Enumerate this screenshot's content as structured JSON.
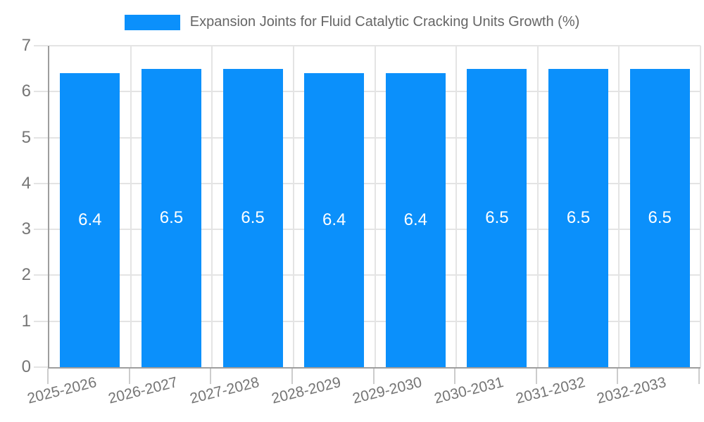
{
  "chart_data": {
    "type": "bar",
    "title": "Expansion Joints for Fluid Catalytic Cracking Units Growth (%)",
    "categories": [
      "2025-2026",
      "2026-2027",
      "2027-2028",
      "2028-2029",
      "2029-2030",
      "2030-2031",
      "2031-2032",
      "2032-2033"
    ],
    "series": [
      {
        "name": "Expansion Joints for Fluid Catalytic Cracking Units Growth (%)",
        "values": [
          6.4,
          6.5,
          6.5,
          6.4,
          6.4,
          6.5,
          6.5,
          6.5
        ]
      }
    ],
    "value_labels": [
      "6.4",
      "6.5",
      "6.5",
      "6.4",
      "6.4",
      "6.5",
      "6.5",
      "6.5"
    ],
    "xlabel": "",
    "ylabel": "",
    "ylim": [
      0,
      7
    ],
    "yticks": [
      "0",
      "1",
      "2",
      "3",
      "4",
      "5",
      "6",
      "7"
    ],
    "grid": true,
    "legend_position": "top-center",
    "colors": {
      "bar": "#0b90fb",
      "value_label": "#ffffff",
      "grid": "#e4e4e4",
      "axis": "#9e9e9e",
      "tick": "#cccccc",
      "tick_label": "#757575",
      "title": "#666666",
      "background": "#ffffff"
    }
  }
}
